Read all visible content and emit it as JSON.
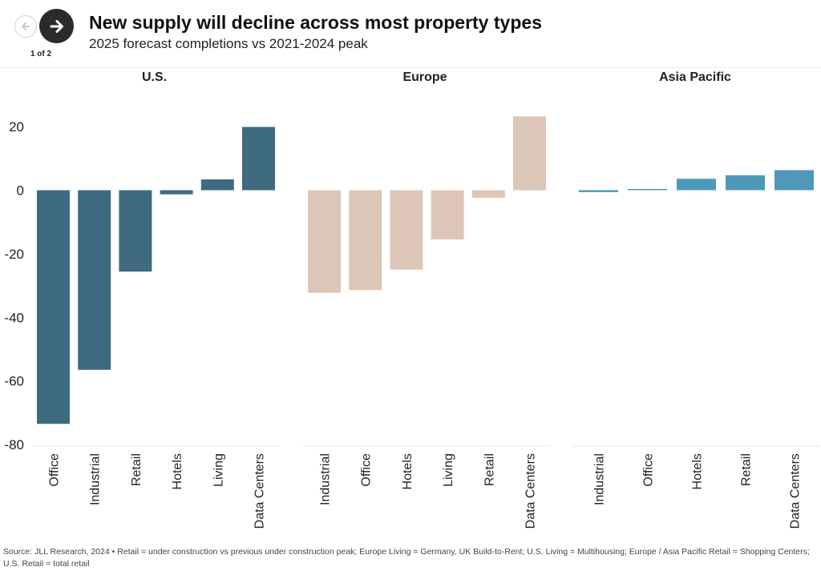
{
  "header": {
    "title": "New supply will decline across most property types",
    "subtitle": "2025 forecast completions vs 2021-2024 peak",
    "page_indicator": "1 of 2"
  },
  "footnote": "Source: JLL Research, 2024 • Retail = under construction vs previous under construction peak; Europe Living = Germany, UK Build-to-Rent; U.S. Living = Multihousing; Europe / Asia Pacific Retail = Shopping Centers;  U.S. Retail = total retail",
  "chart_data": {
    "type": "bar",
    "title": "New supply will decline across most property types",
    "subtitle": "2025 forecast completions vs 2021-2024 peak",
    "ylim": [
      -80,
      25
    ],
    "yticks": [
      "20",
      "0",
      "-20",
      "-40",
      "-60",
      "-80"
    ],
    "grid": false,
    "panels": [
      {
        "name": "U.S.",
        "color": "#3e6b80",
        "categories": [
          "Office",
          "Industrial",
          "Retail",
          "Hotels",
          "Living",
          "Data Centers"
        ],
        "values": [
          -73.5,
          -56.5,
          -25.6,
          -1.3,
          3.4,
          19.9
        ]
      },
      {
        "name": "Europe",
        "color": "#dcc6b7",
        "categories": [
          "Industrial",
          "Office",
          "Hotels",
          "Living",
          "Retail",
          "Data Centers"
        ],
        "values": [
          -32.3,
          -31.4,
          -25.0,
          -15.5,
          -2.4,
          23.2
        ]
      },
      {
        "name": "Asia Pacific",
        "color": "#4e98b9",
        "categories": [
          "Industrial",
          "Office",
          "Hotels",
          "Retail",
          "Data Centers"
        ],
        "values": [
          -0.6,
          0.3,
          3.6,
          4.7,
          6.3
        ]
      }
    ]
  }
}
